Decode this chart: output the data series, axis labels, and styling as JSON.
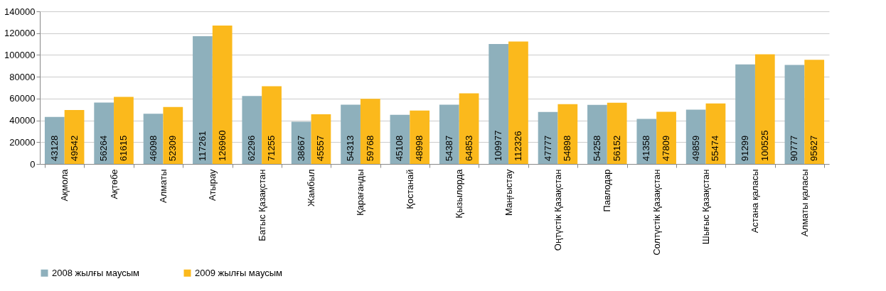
{
  "chart_data": {
    "type": "bar",
    "categories": [
      "Ақмола",
      "Ақтөбе",
      "Алматы",
      "Атырау",
      "Батыс Қазақстан",
      "Жамбыл",
      "Қарағанды",
      "Қостанай",
      "Қызылорда",
      "Маңғыстау",
      "Оңтүстік Қазақстан",
      "Павлодар",
      "Солтүстік Қазақстан",
      "Шығыс Қазақстан",
      "Астана қаласы",
      "Алматы қаласы"
    ],
    "series": [
      {
        "name": "2008 жылғы маусым",
        "color": "#8eb0bc",
        "values": [
          43128,
          56264,
          46098,
          117261,
          62296,
          38667,
          54313,
          45108,
          54387,
          109977,
          47777,
          54258,
          41358,
          49859,
          91299,
          90777
        ]
      },
      {
        "name": "2009 жылғы маусым",
        "color": "#fbb91c",
        "values": [
          49542,
          61615,
          52309,
          126960,
          71255,
          45557,
          59768,
          48998,
          64853,
          112326,
          54898,
          56152,
          47809,
          55474,
          100525,
          95627
        ]
      }
    ],
    "ylim": [
      0,
      140000
    ],
    "yticks": [
      0,
      20000,
      40000,
      60000,
      80000,
      100000,
      120000,
      140000
    ],
    "grid": "y",
    "legend": "bottom",
    "data_labels": true
  }
}
